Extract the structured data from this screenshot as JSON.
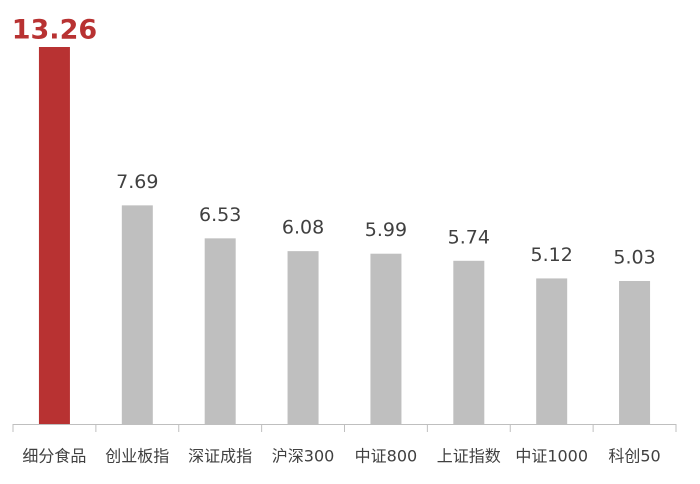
{
  "chart_data": {
    "type": "bar",
    "categories": [
      "细分食品",
      "创业板指",
      "深证成指",
      "沪深300",
      "中证800",
      "上证指数",
      "中证1000",
      "科创50"
    ],
    "values": [
      13.26,
      7.69,
      6.53,
      6.08,
      5.99,
      5.74,
      5.12,
      5.03
    ],
    "colors": [
      "#b83232",
      "#bfbfbf",
      "#bfbfbf",
      "#bfbfbf",
      "#bfbfbf",
      "#bfbfbf",
      "#bfbfbf",
      "#bfbfbf"
    ]
  }
}
